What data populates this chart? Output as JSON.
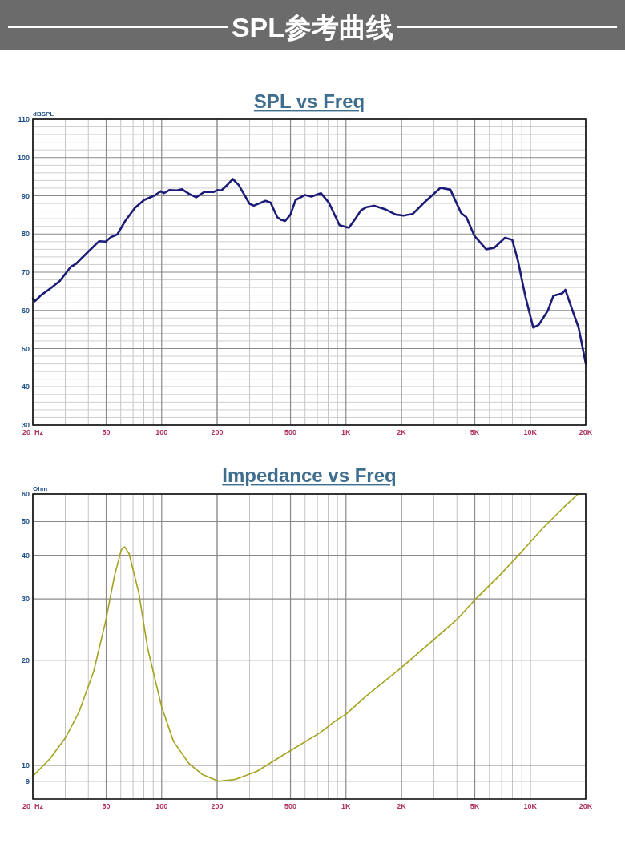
{
  "chart_data": [
    {
      "type": "other",
      "title": "SPL参考曲线"
    },
    {
      "type": "line",
      "title": "SPL vs Freq",
      "ylabel": "dBSPL",
      "log": "x",
      "grid": true,
      "x": [
        20,
        20.5,
        22.2,
        25,
        28,
        32.1,
        34.3,
        40.6,
        45.7,
        49.7,
        53.2,
        57.5,
        63.4,
        71.5,
        80.3,
        91.8,
        98.9,
        103,
        110,
        121,
        129,
        141,
        154,
        170,
        191,
        201,
        211,
        230,
        243,
        262,
        300,
        316,
        366,
        390,
        424,
        445,
        468,
        500,
        533,
        598,
        650,
        731,
        808,
        923,
        1037,
        1128,
        1206,
        1289,
        1424,
        1628,
        1859,
        2055,
        2310,
        2640,
        2965,
        3256,
        3686,
        4213,
        4502,
        4978,
        5772,
        6379,
        7287,
        7984,
        8585,
        9390,
        10380,
        11110,
        12480,
        13340,
        14980,
        15500,
        16830,
        18290,
        20000
      ],
      "series": [
        {
          "color": "#1c1c78",
          "values": [
            63.1,
            62.4,
            64,
            65.8,
            67.7,
            71.4,
            72.2,
            75.7,
            78.1,
            78,
            79.2,
            79.9,
            83.4,
            86.8,
            88.9,
            90.1,
            91.2,
            90.7,
            91.5,
            91.4,
            91.7,
            90.5,
            89.6,
            91,
            91,
            91.5,
            91.4,
            93.1,
            94.4,
            92.8,
            87.9,
            87.4,
            88.7,
            88.2,
            84.4,
            83.7,
            83.4,
            85.1,
            88.9,
            90.2,
            89.8,
            90.7,
            88.2,
            82.3,
            81.6,
            84.1,
            86.2,
            87,
            87.4,
            86.5,
            85.1,
            84.8,
            85.3,
            88.1,
            90.3,
            92.1,
            91.6,
            85.5,
            84.4,
            79.5,
            76,
            76.4,
            79,
            78.5,
            72.9,
            63.8,
            55.5,
            56.2,
            60,
            63.8,
            64.5,
            65.4,
            60.4,
            55.5,
            46.1
          ]
        }
      ],
      "xlim": [
        20,
        20000
      ],
      "xticks": [
        {
          "value": 20,
          "label": "20  Hz"
        },
        50,
        100,
        200,
        500,
        {
          "value": 1000,
          "label": "1K"
        },
        {
          "value": 2000,
          "label": "2K"
        },
        {
          "value": 5000,
          "label": "5K"
        },
        {
          "value": 10000,
          "label": "10K"
        },
        {
          "value": 20000,
          "label": "20K"
        }
      ],
      "ylim": [
        30,
        110
      ],
      "yticks": [
        30,
        40,
        50,
        60,
        70,
        80,
        90,
        100,
        110
      ]
    },
    {
      "type": "line",
      "title": "Impedance vs Freq",
      "ylabel": "Ohm",
      "log": "xy",
      "grid": true,
      "x": [
        20,
        25,
        30.1,
        35.6,
        42.8,
        49.6,
        55.6,
        60.4,
        63,
        66.6,
        75,
        84,
        100,
        116,
        141,
        167,
        203,
        249,
        328,
        457,
        724,
        893,
        1000,
        1289,
        1988,
        2966,
        4006,
        5063,
        6838,
        8924,
        11660,
        15230,
        18170
      ],
      "series": [
        {
          "color": "#a3a31e",
          "values": [
            9.3,
            10.5,
            12,
            14.2,
            18.6,
            25.8,
            35.1,
            41.5,
            42.3,
            40.4,
            31.4,
            21.6,
            14.7,
            11.7,
            10.1,
            9.4,
            9,
            9.1,
            9.6,
            10.7,
            12.4,
            13.5,
            14,
            15.8,
            19,
            22.8,
            26.2,
            30,
            35.1,
            40.8,
            47.8,
            55,
            60
          ]
        }
      ],
      "xlim": [
        20,
        20000
      ],
      "xticks": [
        {
          "value": 20,
          "label": "20  Hz"
        },
        50,
        100,
        200,
        500,
        {
          "value": 1000,
          "label": "1K"
        },
        {
          "value": 2000,
          "label": "2K"
        },
        {
          "value": 5000,
          "label": "5K"
        },
        {
          "value": 10000,
          "label": "10K"
        },
        {
          "value": 20000,
          "label": "20K"
        }
      ],
      "ylim": [
        8,
        60
      ],
      "yticks": [
        9,
        10,
        20,
        30,
        40,
        50,
        60
      ]
    }
  ]
}
